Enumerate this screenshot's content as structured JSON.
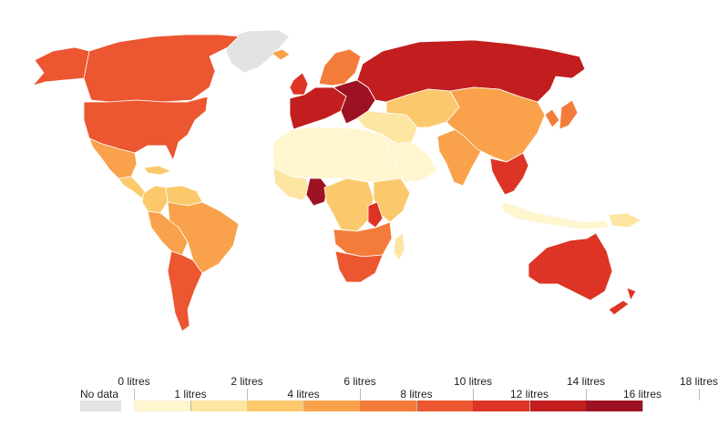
{
  "colors": {
    "no_data": "#e3e3e3",
    "bins": [
      "#fff5cf",
      "#fde5a2",
      "#fbc96b",
      "#f9a24b",
      "#f47c3a",
      "#ec5630",
      "#dd3425",
      "#c21e1f",
      "#9d1222"
    ]
  },
  "legend": {
    "no_data_label": "No data",
    "top_labels": [
      "0 litres",
      "2 litres",
      "6 litres",
      "10 litres",
      "14 litres",
      "18 litres"
    ],
    "bottom_labels": [
      "1 litres",
      "4 litres",
      "8 litres",
      "12 litres",
      "16 litres"
    ]
  },
  "regions": [
    {
      "name": "greenland",
      "bin": -1
    },
    {
      "name": "alaska",
      "bin": 5
    },
    {
      "name": "canada",
      "bin": 5
    },
    {
      "name": "usa",
      "bin": 5
    },
    {
      "name": "mexico",
      "bin": 3
    },
    {
      "name": "central-america",
      "bin": 2
    },
    {
      "name": "cuba",
      "bin": 2
    },
    {
      "name": "colombia",
      "bin": 2
    },
    {
      "name": "venezuela",
      "bin": 2
    },
    {
      "name": "brazil",
      "bin": 3
    },
    {
      "name": "peru-bolivia",
      "bin": 3
    },
    {
      "name": "argentina-chile",
      "bin": 5
    },
    {
      "name": "iceland",
      "bin": 3
    },
    {
      "name": "scandinavia",
      "bin": 4
    },
    {
      "name": "uk-ireland",
      "bin": 6
    },
    {
      "name": "western-europe",
      "bin": 7
    },
    {
      "name": "eastern-europe",
      "bin": 8
    },
    {
      "name": "russia",
      "bin": 7
    },
    {
      "name": "north-africa",
      "bin": 0
    },
    {
      "name": "arabia",
      "bin": 0
    },
    {
      "name": "turkey-iran",
      "bin": 1
    },
    {
      "name": "central-asia",
      "bin": 2
    },
    {
      "name": "west-africa",
      "bin": 1
    },
    {
      "name": "nigeria",
      "bin": 8
    },
    {
      "name": "central-africa",
      "bin": 2
    },
    {
      "name": "east-africa",
      "bin": 2
    },
    {
      "name": "uganda",
      "bin": 6
    },
    {
      "name": "southern-africa",
      "bin": 4
    },
    {
      "name": "south-africa",
      "bin": 5
    },
    {
      "name": "madagascar",
      "bin": 1
    },
    {
      "name": "india",
      "bin": 3
    },
    {
      "name": "china",
      "bin": 3
    },
    {
      "name": "mongolia",
      "bin": 3
    },
    {
      "name": "korea-japan",
      "bin": 4
    },
    {
      "name": "southeast-asia",
      "bin": 6
    },
    {
      "name": "indonesia",
      "bin": 0
    },
    {
      "name": "papua",
      "bin": 1
    },
    {
      "name": "australia",
      "bin": 6
    },
    {
      "name": "new-zealand",
      "bin": 6
    }
  ]
}
